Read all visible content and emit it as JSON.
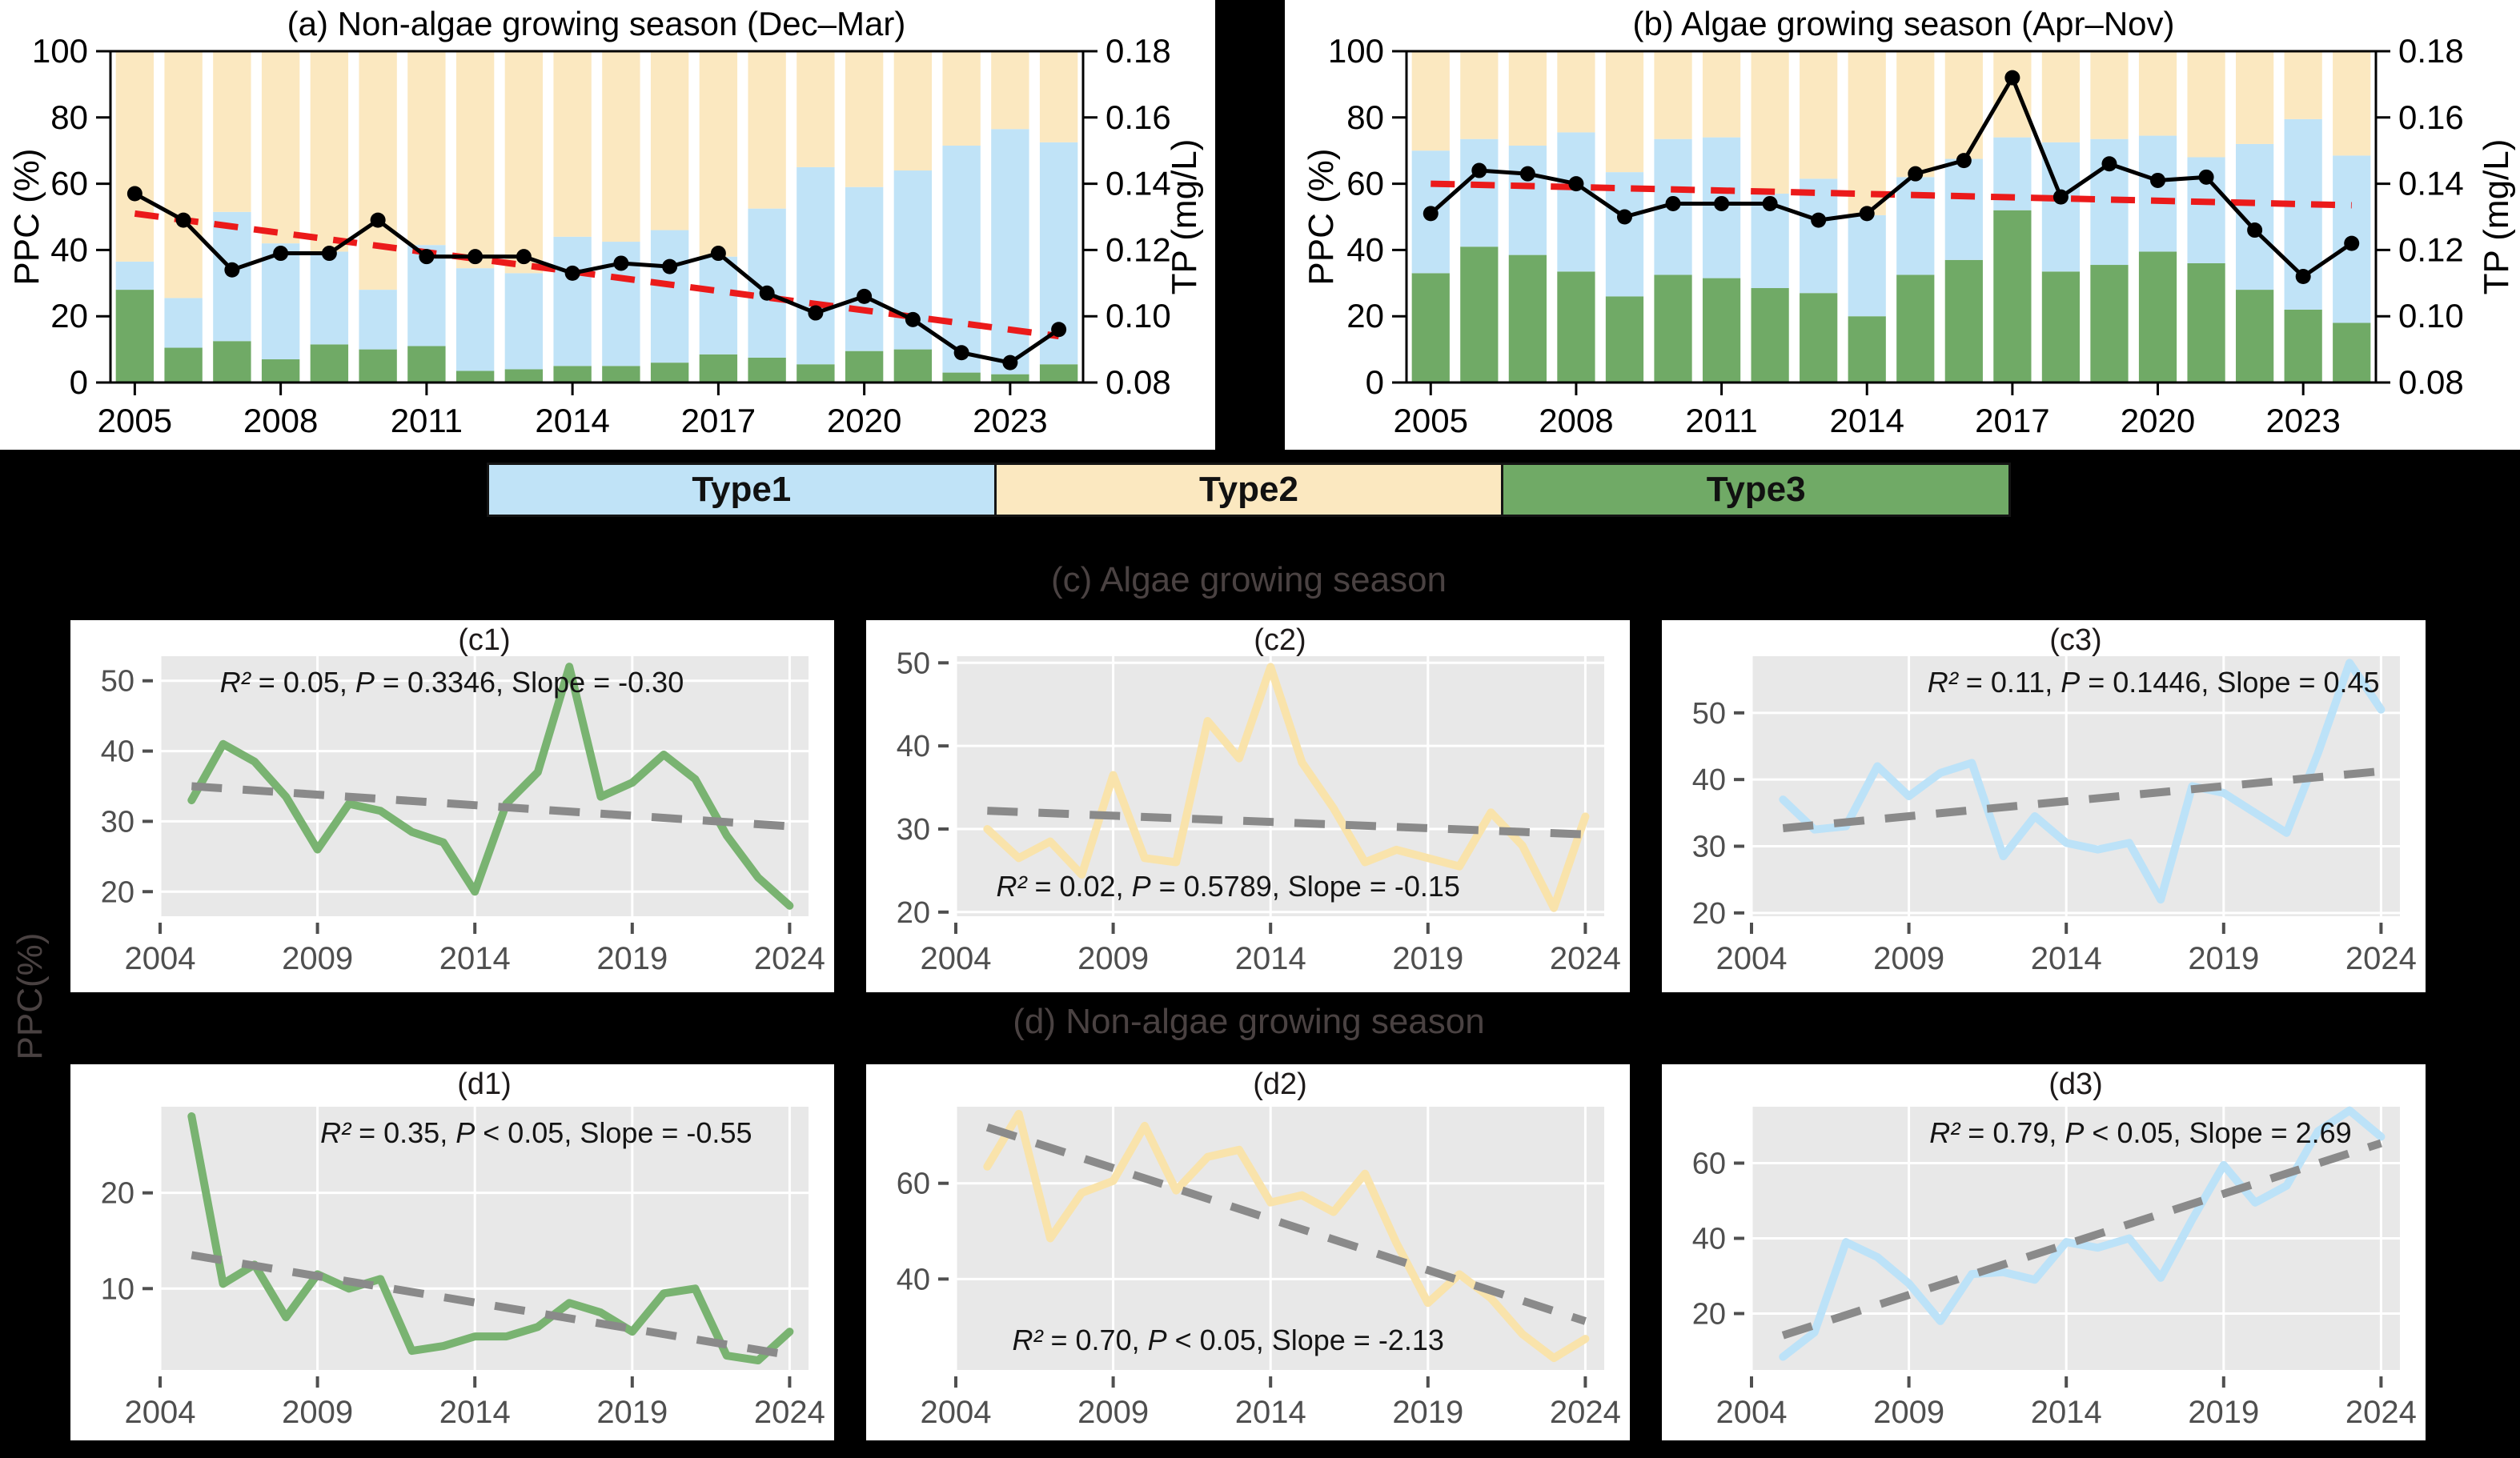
{
  "page": {
    "background": "#000000"
  },
  "colors": {
    "type1_blue": "#C0E3F7",
    "type2_yellow": "#FBE8C0",
    "type3_green": "#70AA66",
    "mini_green": "#79B371",
    "mini_yellow": "#F9E3AB",
    "mini_blue": "#BCE2F8",
    "tp_line_black": "#000000",
    "trend_red": "#EB1A1A",
    "trend_gray": "#8A8A8A",
    "plot_bg_gray": "#E8E8E8",
    "gridline_white": "#FFFFFF",
    "tick_gray": "#4F4F4F",
    "card_white": "#FFFFFF"
  },
  "legend": {
    "items": [
      {
        "label": "Type1",
        "color": "#C0E3F7"
      },
      {
        "label": "Type2",
        "color": "#FBE8C0"
      },
      {
        "label": "Type3",
        "color": "#70AA66"
      }
    ]
  },
  "section_titles": {
    "c": "(c) Algae growing season",
    "d": "(d) Non-algae growing season",
    "shared_ylabel": "PPC(%)"
  },
  "chart_data": [
    {
      "id": "a",
      "type": "bar",
      "subtype": "stacked-bars-with-line",
      "title": "(a) Non-algae growing season (Dec–Mar)",
      "ylabel_left": "PPC (%)",
      "ylabel_right": "TP (mg/L)",
      "years": [
        2005,
        2006,
        2007,
        2008,
        2009,
        2010,
        2011,
        2012,
        2013,
        2014,
        2015,
        2016,
        2017,
        2018,
        2019,
        2020,
        2021,
        2022,
        2023,
        2024
      ],
      "xticks": [
        2005,
        2008,
        2011,
        2014,
        2017,
        2020,
        2023
      ],
      "ylim_left": [
        0,
        100
      ],
      "yticks_left": [
        0,
        20,
        40,
        60,
        80,
        100
      ],
      "ylim_right": [
        0.08,
        0.18
      ],
      "yticks_right": [
        0.08,
        0.1,
        0.12,
        0.14,
        0.16,
        0.18
      ],
      "stack_order": [
        "Type3",
        "Type1",
        "Type2"
      ],
      "series": [
        {
          "name": "Type3",
          "color_key": "type3_green",
          "values": [
            28,
            10.5,
            12.5,
            7,
            11.5,
            10,
            11,
            3.5,
            4,
            5,
            5,
            6,
            8.5,
            7.5,
            5.5,
            9.5,
            10,
            3,
            2.5,
            5.5
          ]
        },
        {
          "name": "Type1",
          "color_key": "type1_blue",
          "values": [
            8.5,
            15,
            39,
            35,
            28,
            18,
            30.5,
            31,
            29,
            39,
            37.5,
            40,
            29.5,
            45,
            59.5,
            49.5,
            54,
            68.5,
            74,
            67
          ]
        },
        {
          "name": "Type2",
          "color_key": "type2_yellow",
          "values": [
            63.5,
            74.5,
            48.5,
            58,
            60.5,
            72,
            58.5,
            65.5,
            67,
            56,
            57.5,
            54,
            62,
            47.5,
            35,
            41,
            36,
            28.5,
            23.5,
            27.5
          ]
        }
      ],
      "tp_line": {
        "name": "TP",
        "color_key": "tp_line_black",
        "values": [
          0.137,
          0.129,
          0.114,
          0.119,
          0.119,
          0.129,
          0.118,
          0.118,
          0.118,
          0.113,
          0.116,
          0.115,
          0.119,
          0.107,
          0.101,
          0.106,
          0.099,
          0.089,
          0.086,
          0.096
        ]
      },
      "tp_trend": {
        "color_key": "trend_red",
        "start": 0.131,
        "end": 0.094
      }
    },
    {
      "id": "b",
      "type": "bar",
      "subtype": "stacked-bars-with-line",
      "title": "(b) Algae growing season (Apr–Nov)",
      "ylabel_left": "PPC (%)",
      "ylabel_right": "TP (mg/L)",
      "years": [
        2005,
        2006,
        2007,
        2008,
        2009,
        2010,
        2011,
        2012,
        2013,
        2014,
        2015,
        2016,
        2017,
        2018,
        2019,
        2020,
        2021,
        2022,
        2023,
        2024
      ],
      "xticks": [
        2005,
        2008,
        2011,
        2014,
        2017,
        2020,
        2023
      ],
      "ylim_left": [
        0,
        100
      ],
      "yticks_left": [
        0,
        20,
        40,
        60,
        80,
        100
      ],
      "ylim_right": [
        0.08,
        0.18
      ],
      "yticks_right": [
        0.08,
        0.1,
        0.12,
        0.14,
        0.16,
        0.18
      ],
      "stack_order": [
        "Type3",
        "Type1",
        "Type2"
      ],
      "series": [
        {
          "name": "Type3",
          "color_key": "type3_green",
          "values": [
            33,
            41,
            38.5,
            33.5,
            26,
            32.5,
            31.5,
            28.5,
            27,
            20,
            32.5,
            37,
            52,
            33.5,
            35.5,
            39.5,
            36,
            28,
            22,
            18
          ]
        },
        {
          "name": "Type1",
          "color_key": "type1_blue",
          "values": [
            37,
            32.5,
            33,
            42,
            37.5,
            41,
            42.5,
            28.5,
            34.5,
            30.5,
            29.5,
            30.5,
            22,
            39,
            38,
            35,
            32,
            44,
            57.5,
            50.5
          ]
        },
        {
          "name": "Type2",
          "color_key": "type2_yellow",
          "values": [
            30,
            26.5,
            28.5,
            24.5,
            36.5,
            26.5,
            26,
            43,
            38.5,
            49.5,
            38,
            32.5,
            26,
            27.5,
            26.5,
            25.5,
            32,
            28,
            20.5,
            31.5
          ]
        }
      ],
      "tp_line": {
        "name": "TP",
        "color_key": "tp_line_black",
        "values": [
          0.131,
          0.144,
          0.143,
          0.14,
          0.13,
          0.134,
          0.134,
          0.134,
          0.129,
          0.131,
          0.143,
          0.147,
          0.172,
          0.136,
          0.146,
          0.141,
          0.142,
          0.126,
          0.112,
          0.122
        ]
      },
      "tp_trend": {
        "color_key": "trend_red",
        "start": 0.14,
        "end": 0.1335
      }
    },
    {
      "id": "c1",
      "type": "line",
      "title": "(c1)",
      "color_key": "mini_green",
      "x_start": 2005,
      "values": [
        33,
        41,
        38.5,
        33.5,
        26,
        32.5,
        31.5,
        28.5,
        27,
        20,
        32.5,
        37,
        52,
        33.5,
        35.5,
        39.5,
        36,
        28,
        22,
        18
      ],
      "trend": {
        "color_key": "trend_gray",
        "start": 35,
        "end": 29.3
      },
      "ylim": [
        16.5,
        53.5
      ],
      "yticks": [
        20,
        30,
        40,
        50
      ],
      "xlim": [
        2004,
        2024.6
      ],
      "xticks": [
        2004,
        2009,
        2014,
        2019,
        2024
      ],
      "stats": [
        {
          "text": "R²",
          "italic": true
        },
        {
          "text": " = 0.05, ",
          "italic": false
        },
        {
          "text": "P",
          "italic": true
        },
        {
          "text": " = 0.3346, Slope = -0.30",
          "italic": false
        }
      ],
      "stats_pos": {
        "v": "top",
        "x": 0.45
      }
    },
    {
      "id": "c2",
      "type": "line",
      "title": "(c2)",
      "color_key": "mini_yellow",
      "x_start": 2005,
      "values": [
        30,
        26.5,
        28.5,
        24.5,
        36.5,
        26.5,
        26,
        43,
        38.5,
        49.5,
        38,
        32.5,
        26,
        27.5,
        26.5,
        25.5,
        32,
        28,
        20.5,
        31.5
      ],
      "trend": {
        "color_key": "trend_gray",
        "start": 32.2,
        "end": 29.35
      },
      "ylim": [
        19.5,
        50.8
      ],
      "yticks": [
        20,
        30,
        40,
        50
      ],
      "xlim": [
        2004,
        2024.6
      ],
      "xticks": [
        2004,
        2009,
        2014,
        2019,
        2024
      ],
      "stats": [
        {
          "text": "R²",
          "italic": true
        },
        {
          "text": " = 0.02, ",
          "italic": false
        },
        {
          "text": "P",
          "italic": true
        },
        {
          "text": " = 0.5789, Slope = -0.15",
          "italic": false
        }
      ],
      "stats_pos": {
        "v": "bottom",
        "x": 0.42
      }
    },
    {
      "id": "c3",
      "type": "line",
      "title": "(c3)",
      "color_key": "mini_blue",
      "x_start": 2005,
      "values": [
        37,
        32.5,
        33,
        42,
        37.5,
        41,
        42.5,
        28.5,
        34.5,
        30.5,
        29.5,
        30.5,
        22,
        39,
        38,
        35,
        32,
        44,
        57.5,
        50.5
      ],
      "trend": {
        "color_key": "trend_gray",
        "start": 32.7,
        "end": 41.25
      },
      "ylim": [
        19.5,
        58.5
      ],
      "yticks": [
        20,
        30,
        40,
        50
      ],
      "xlim": [
        2004,
        2024.6
      ],
      "xticks": [
        2004,
        2009,
        2014,
        2019,
        2024
      ],
      "stats": [
        {
          "text": "R²",
          "italic": true
        },
        {
          "text": " = 0.11, ",
          "italic": false
        },
        {
          "text": "P",
          "italic": true
        },
        {
          "text": " = 0.1446, Slope = 0.45",
          "italic": false
        }
      ],
      "stats_pos": {
        "v": "top",
        "x": 0.62
      }
    },
    {
      "id": "d1",
      "type": "line",
      "title": "(d1)",
      "color_key": "mini_green",
      "x_start": 2005,
      "values": [
        28,
        10.5,
        12.5,
        7,
        11.5,
        10,
        11,
        3.5,
        4,
        5,
        5,
        6,
        8.5,
        7.5,
        5.5,
        9.5,
        10,
        3,
        2.5,
        5.5
      ],
      "trend": {
        "color_key": "trend_gray",
        "start": 13.5,
        "end": 3.05
      },
      "ylim": [
        1.5,
        29
      ],
      "yticks": [
        10,
        20
      ],
      "xlim": [
        2004,
        2024.6
      ],
      "xticks": [
        2004,
        2009,
        2014,
        2019,
        2024
      ],
      "stats": [
        {
          "text": "R²",
          "italic": true
        },
        {
          "text": " = 0.35, ",
          "italic": false
        },
        {
          "text": "P",
          "italic": true
        },
        {
          "text": " < 0.05, Slope = -0.55",
          "italic": false
        }
      ],
      "stats_pos": {
        "v": "top",
        "x": 0.58
      }
    },
    {
      "id": "d2",
      "type": "line",
      "title": "(d2)",
      "color_key": "mini_yellow",
      "x_start": 2005,
      "values": [
        63.5,
        74.5,
        48.5,
        58,
        60.5,
        72,
        58.5,
        65.5,
        67,
        56,
        57.5,
        54,
        62,
        47.5,
        35,
        41,
        36,
        28.5,
        23.5,
        27.5
      ],
      "trend": {
        "color_key": "trend_gray",
        "start": 71.7,
        "end": 31.2
      },
      "ylim": [
        21,
        76
      ],
      "yticks": [
        40,
        60
      ],
      "xlim": [
        2004,
        2024.6
      ],
      "xticks": [
        2004,
        2009,
        2014,
        2019,
        2024
      ],
      "stats": [
        {
          "text": "R²",
          "italic": true
        },
        {
          "text": " = 0.70, ",
          "italic": false
        },
        {
          "text": "P",
          "italic": true
        },
        {
          "text": " < 0.05, Slope = -2.13",
          "italic": false
        }
      ],
      "stats_pos": {
        "v": "bottom",
        "x": 0.42
      }
    },
    {
      "id": "d3",
      "type": "line",
      "title": "(d3)",
      "color_key": "mini_blue",
      "x_start": 2005,
      "values": [
        8.5,
        15,
        39,
        35,
        28,
        18,
        30.5,
        31,
        29,
        39,
        37.5,
        40,
        29.5,
        45,
        59.5,
        49.5,
        54,
        68.5,
        74,
        67
      ],
      "trend": {
        "color_key": "trend_gray",
        "start": 14.2,
        "end": 65.3
      },
      "ylim": [
        5,
        75
      ],
      "yticks": [
        20,
        40,
        60
      ],
      "xlim": [
        2004,
        2024.6
      ],
      "xticks": [
        2004,
        2009,
        2014,
        2019,
        2024
      ],
      "stats": [
        {
          "text": "R²",
          "italic": true
        },
        {
          "text": " = 0.79, ",
          "italic": false
        },
        {
          "text": "P",
          "italic": true
        },
        {
          "text": " < 0.05, Slope = 2.69",
          "italic": false
        }
      ],
      "stats_pos": {
        "v": "top",
        "x": 0.6
      }
    }
  ]
}
